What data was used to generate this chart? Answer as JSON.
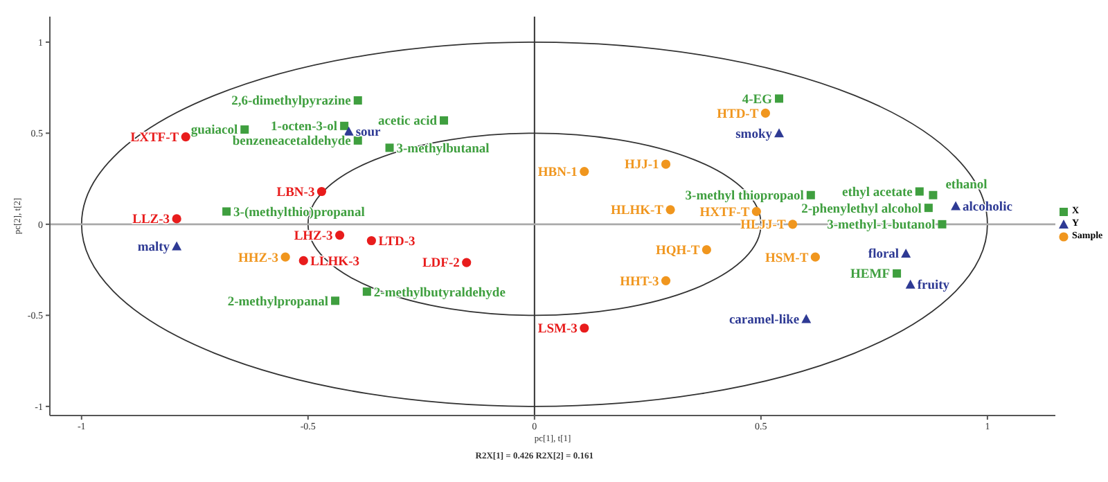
{
  "chart_data": {
    "type": "scatter",
    "xlabel": "pc[1], t[1]",
    "ylabel": "pc[2], t[2]",
    "annotations": [
      "R2X[1] = 0.426 R2X[2] = 0.161",
      {
        "text": "2,6-dimethylpyrazine",
        "x": -0.39,
        "y": 0.68
      },
      {
        "text": "guaiacol",
        "x": -0.64,
        "y": 0.52
      },
      {
        "text": "1-octen-3-ol",
        "x": -0.42,
        "y": 0.54
      },
      {
        "text": "benzeneacetaldehyde",
        "x": -0.39,
        "y": 0.46
      },
      {
        "text": "acetic acid",
        "x": -0.2,
        "y": 0.57
      },
      {
        "text": "3-methylbutanal",
        "x": -0.32,
        "y": 0.42
      },
      {
        "text": "3-(methylthio)propanal",
        "x": -0.68,
        "y": 0.07
      },
      {
        "text": "2-methylbutyraldehyde",
        "x": -0.37,
        "y": -0.37
      },
      {
        "text": "2-methylpropanal",
        "x": -0.44,
        "y": -0.42
      },
      {
        "text": "4-EG",
        "x": 0.54,
        "y": 0.69
      },
      {
        "text": "3-methyl thiopropaol",
        "x": 0.61,
        "y": 0.16
      },
      {
        "text": "ethyl acetate",
        "x": 0.85,
        "y": 0.18
      },
      {
        "text": "ethanol",
        "x": 0.88,
        "y": 0.16
      },
      {
        "text": "2-phenylethyl alcohol",
        "x": 0.87,
        "y": 0.09
      },
      {
        "text": "3-methyl-1-butanol",
        "x": 0.9,
        "y": 0.0
      },
      {
        "text": "HEMF",
        "x": 0.8,
        "y": -0.27
      },
      {
        "text": "sour",
        "x": -0.41,
        "y": 0.51
      },
      {
        "text": "malty",
        "x": -0.79,
        "y": -0.12
      },
      {
        "text": "smoky",
        "x": 0.54,
        "y": 0.5
      },
      {
        "text": "alcoholic",
        "x": 0.93,
        "y": 0.1
      },
      {
        "text": "floral",
        "x": 0.82,
        "y": -0.16
      },
      {
        "text": "fruity",
        "x": 0.83,
        "y": -0.33
      },
      {
        "text": "caramel-like",
        "x": 0.6,
        "y": -0.52
      },
      {
        "text": "HBN-1",
        "x": 0.11,
        "y": 0.29
      },
      {
        "text": "HJJ-1",
        "x": 0.29,
        "y": 0.33
      },
      {
        "text": "HTD-T",
        "x": 0.51,
        "y": 0.61
      },
      {
        "text": "HLHK-T",
        "x": 0.3,
        "y": 0.08
      },
      {
        "text": "HXTF-T",
        "x": 0.49,
        "y": 0.07
      },
      {
        "text": "HLJJ-T",
        "x": 0.57,
        "y": 0.0
      },
      {
        "text": "HHZ-3",
        "x": -0.55,
        "y": -0.18
      },
      {
        "text": "HQH-T",
        "x": 0.38,
        "y": -0.14
      },
      {
        "text": "HSM-T",
        "x": 0.62,
        "y": -0.18
      },
      {
        "text": "HHT-3",
        "x": 0.29,
        "y": -0.31
      },
      {
        "text": "LXTF-T",
        "x": -0.77,
        "y": 0.48
      },
      {
        "text": "LLZ-3",
        "x": -0.79,
        "y": 0.03
      },
      {
        "text": "LBN-3",
        "x": -0.47,
        "y": 0.18
      },
      {
        "text": "LHZ-3",
        "x": -0.43,
        "y": -0.06
      },
      {
        "text": "LTD-3",
        "x": -0.36,
        "y": -0.09
      },
      {
        "text": "LLHK-3",
        "x": -0.51,
        "y": -0.2
      },
      {
        "text": "LDF-2",
        "x": -0.15,
        "y": -0.21
      },
      {
        "text": "LSM-3",
        "x": 0.11,
        "y": -0.57
      }
    ],
    "xlim": [
      -1.07,
      1.15
    ],
    "ylim": [
      -1.05,
      1.14
    ],
    "xticks": [
      -1,
      -0.5,
      0,
      0.5,
      1
    ],
    "yticks": [
      -1,
      -0.5,
      0,
      0.5,
      1
    ],
    "grid": false,
    "legend": "right",
    "ref_lines": [
      {
        "axis": "x",
        "value": 0,
        "color": "#333333"
      },
      {
        "axis": "y",
        "value": 0,
        "color": "#aaaaaa"
      }
    ],
    "series": [
      {
        "name": "X",
        "color": "#3f9f3f",
        "marker": "square",
        "x": [
          -0.39,
          -0.64,
          -0.42,
          -0.39,
          -0.2,
          -0.32,
          -0.68,
          -0.37,
          -0.44,
          0.54,
          0.61,
          0.85,
          0.88,
          0.87,
          0.9,
          0.8
        ],
        "values": [
          0.68,
          0.52,
          0.54,
          0.46,
          0.57,
          0.42,
          0.07,
          -0.37,
          -0.42,
          0.69,
          0.16,
          0.18,
          0.16,
          0.09,
          0.0,
          -0.27
        ]
      },
      {
        "name": "Y",
        "color": "#2e3a94",
        "marker": "triangle",
        "x": [
          -0.41,
          -0.79,
          0.54,
          0.93,
          0.82,
          0.83,
          0.6
        ],
        "values": [
          0.51,
          -0.12,
          0.5,
          0.1,
          -0.16,
          -0.33,
          -0.52
        ]
      },
      {
        "name": "Sample",
        "color": "#f0961e",
        "marker": "circle",
        "x": [
          0.11,
          0.29,
          0.51,
          0.3,
          0.49,
          0.57,
          -0.55,
          0.38,
          0.62,
          0.29
        ],
        "values": [
          0.29,
          0.33,
          0.61,
          0.08,
          0.07,
          0.0,
          -0.18,
          -0.14,
          -0.18,
          -0.31
        ]
      },
      {
        "color": "#e81c1c",
        "marker": "circle",
        "x": [
          -0.77,
          -0.79,
          -0.47,
          -0.43,
          -0.36,
          -0.51,
          -0.15,
          0.11
        ],
        "values": [
          0.48,
          0.03,
          0.18,
          -0.06,
          -0.09,
          -0.2,
          -0.21,
          -0.57
        ]
      }
    ]
  }
}
